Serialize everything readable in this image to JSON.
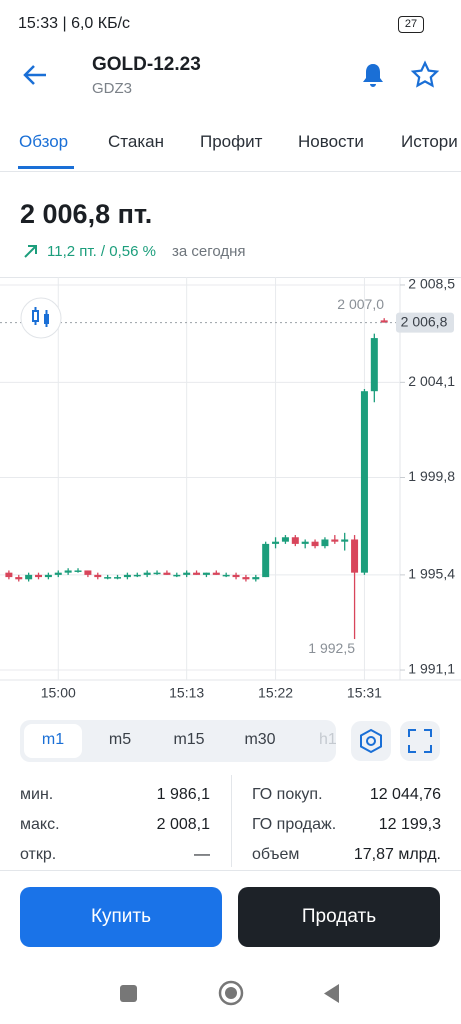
{
  "status_bar": {
    "time_speed": "15:33 | 6,0 КБ/с",
    "battery": "27"
  },
  "header": {
    "title": "GOLD-12.23",
    "ticker": "GDZ3"
  },
  "tabs": [
    "Обзор",
    "Стакан",
    "Профит",
    "Новости",
    "Истори"
  ],
  "quote": {
    "price": "2 006,8 пт.",
    "change": "11,2 пт. / 0,56 %",
    "period": "за сегодня"
  },
  "chart_data": {
    "type": "candlestick",
    "open": [
      1995.5,
      1995.3,
      1995.2,
      1995.4,
      1995.3,
      1995.4,
      1995.5,
      1995.6,
      1995.6,
      1995.4,
      1995.3,
      1995.3,
      1995.3,
      1995.4,
      1995.4,
      1995.5,
      1995.5,
      1995.4,
      1995.4,
      1995.5,
      1995.4,
      1995.5,
      1995.4,
      1995.4,
      1995.3,
      1995.2,
      1995.3,
      1996.8,
      1996.9,
      1997.1,
      1996.8,
      1996.9,
      1996.7,
      1997.0,
      1996.9,
      1997.0,
      1995.5,
      2003.7,
      2006.9
    ],
    "high": [
      1995.6,
      1995.4,
      1995.5,
      1995.5,
      1995.5,
      1995.6,
      1995.7,
      1995.7,
      1995.6,
      1995.5,
      1995.4,
      1995.4,
      1995.5,
      1995.5,
      1995.6,
      1995.6,
      1995.6,
      1995.5,
      1995.6,
      1995.6,
      1995.5,
      1995.6,
      1995.5,
      1995.5,
      1995.4,
      1995.4,
      1996.9,
      1997.1,
      1997.2,
      1997.2,
      1997.0,
      1997.0,
      1997.1,
      1997.2,
      1997.3,
      1997.2,
      2003.8,
      2006.3,
      2007.0
    ],
    "low": [
      1995.2,
      1995.1,
      1995.1,
      1995.2,
      1995.2,
      1995.3,
      1995.4,
      1995.5,
      1995.3,
      1995.2,
      1995.2,
      1995.2,
      1995.2,
      1995.3,
      1995.3,
      1995.4,
      1995.4,
      1995.3,
      1995.3,
      1995.4,
      1995.3,
      1995.4,
      1995.3,
      1995.2,
      1995.1,
      1995.1,
      1995.3,
      1996.6,
      1996.8,
      1996.7,
      1996.6,
      1996.6,
      1996.6,
      1996.8,
      1996.5,
      1992.5,
      1995.4,
      2003.2,
      2006.8
    ],
    "close": [
      1995.3,
      1995.2,
      1995.4,
      1995.3,
      1995.4,
      1995.5,
      1995.6,
      1995.6,
      1995.4,
      1995.3,
      1995.3,
      1995.3,
      1995.4,
      1995.4,
      1995.5,
      1995.5,
      1995.4,
      1995.4,
      1995.5,
      1995.4,
      1995.5,
      1995.4,
      1995.4,
      1995.3,
      1995.2,
      1995.3,
      1996.8,
      1996.9,
      1997.1,
      1996.8,
      1996.9,
      1996.7,
      1997.0,
      1996.9,
      1997.0,
      1995.5,
      2003.7,
      2006.1,
      2006.8
    ],
    "up_color": "#1c9e7c",
    "down_color": "#d8455b",
    "xlim": [
      0.1,
      40.6
    ],
    "ylim": [
      1990.65,
      2008.86
    ],
    "xticks": [
      {
        "value": 6,
        "label": "15:00"
      },
      {
        "value": 19,
        "label": "15:13"
      },
      {
        "value": 28,
        "label": "15:22"
      },
      {
        "value": 37,
        "label": "15:31"
      }
    ],
    "yticks": [
      {
        "value": 2008.5,
        "label": "2 008,5"
      },
      {
        "value": 2004.1,
        "label": "2 004,1"
      },
      {
        "value": 1999.8,
        "label": "1 999,8"
      },
      {
        "value": 1995.4,
        "label": "1 995,4"
      },
      {
        "value": 1991.1,
        "label": "1 991,1"
      }
    ],
    "max_label": {
      "value": 2007.0,
      "label": "2 007,0"
    },
    "min_label": {
      "value": 1992.5,
      "label": "1 992,5"
    },
    "current": {
      "value": 2006.8,
      "label": "2 006,8"
    },
    "grid": true
  },
  "timeframes": [
    "m1",
    "m5",
    "m15",
    "m30",
    "h1"
  ],
  "stats": {
    "left": [
      [
        "мин.",
        "1 986,1"
      ],
      [
        "макс.",
        "2 008,1"
      ],
      [
        "откр.",
        "—"
      ]
    ],
    "right": [
      [
        "ГО покуп.",
        "12 044,76"
      ],
      [
        "ГО продаж.",
        "12 199,3"
      ],
      [
        "объем",
        "17,87 млрд."
      ]
    ]
  },
  "buttons": {
    "buy": "Купить",
    "sell": "Продать"
  }
}
